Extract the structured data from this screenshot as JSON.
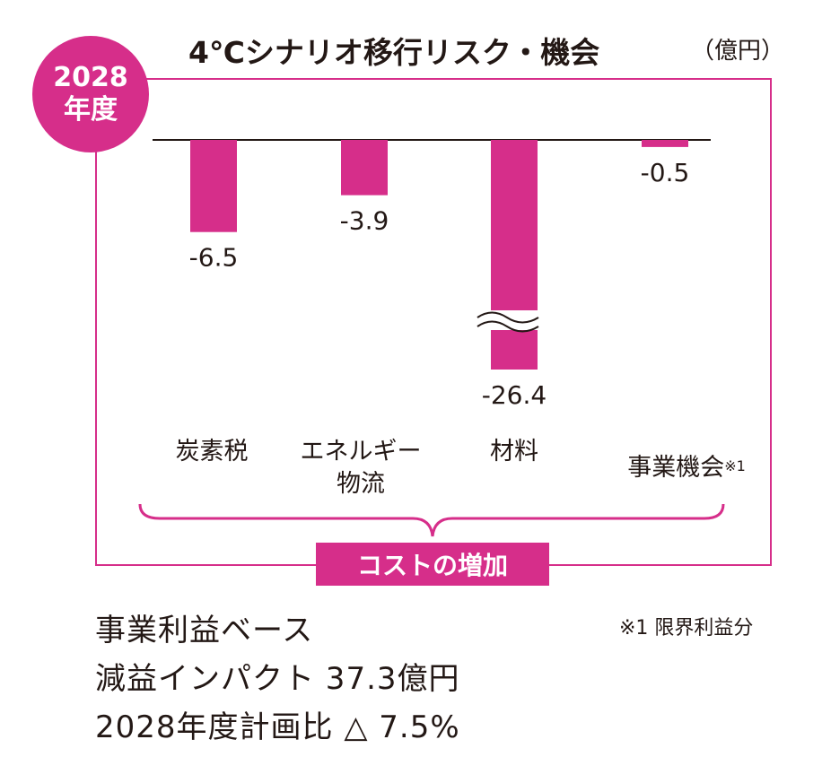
{
  "badge": {
    "year": "2028",
    "label": "年度"
  },
  "title": "4℃シナリオ移行リスク・機会",
  "unit": "（億円）",
  "categories": {
    "carbon_tax": "炭素税",
    "energy_line1": "エネルギー",
    "energy_line2": "物流",
    "materials": "材料",
    "business": "事業機会",
    "business_sup": "※1"
  },
  "cost_label": "コストの増加",
  "summary": {
    "line1": "事業利益ベース",
    "line2": "減益インパクト 37.3億円",
    "line3": "2028年度計画比 △ 7.5%"
  },
  "footnote": "※1 限界利益分",
  "colors": {
    "accent": "#d62e8a",
    "text": "#231815"
  },
  "chart_data": {
    "type": "bar",
    "title": "4℃シナリオ移行リスク・機会",
    "ylabel": "（億円）",
    "categories": [
      "炭素税",
      "エネルギー物流",
      "材料",
      "事業機会※1"
    ],
    "values": [
      -6.5,
      -3.9,
      -26.4,
      -0.5
    ],
    "value_labels": [
      "-6.5",
      "-3.9",
      "-26.4",
      "-0.5"
    ],
    "axis_break": "材料 bar shown with a break mark (not to scale)"
  }
}
